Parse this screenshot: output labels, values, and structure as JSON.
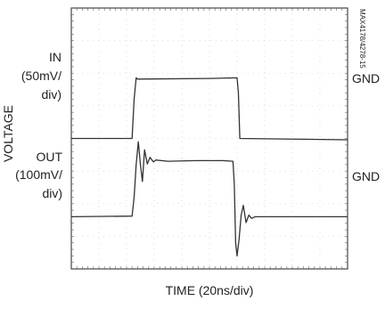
{
  "chart_data": {
    "type": "line",
    "title": "",
    "xlabel": "TIME (20ns/div)",
    "ylabel": "VOLTAGE",
    "grid": true,
    "divisions": {
      "x": 10,
      "y": 8
    },
    "xlim": [
      0,
      200
    ],
    "ylim": [
      0,
      8
    ],
    "x_unit": "ns",
    "series": [
      {
        "name": "IN",
        "label_lines": [
          "IN",
          "(50mV/",
          "div)"
        ],
        "ground_label": "GND",
        "ground_level": 4.0,
        "points": [
          [
            0,
            4.0
          ],
          [
            44,
            4.0
          ],
          [
            45.5,
            5.2
          ],
          [
            47,
            5.86
          ],
          [
            48,
            5.82
          ],
          [
            100,
            5.84
          ],
          [
            120,
            5.86
          ],
          [
            121,
            5.4
          ],
          [
            122,
            4.0
          ],
          [
            200,
            3.96
          ]
        ]
      },
      {
        "name": "OUT",
        "label_lines": [
          "OUT",
          "(100mV/",
          "div)"
        ],
        "ground_label": "GND",
        "ground_level": 1.6,
        "points": [
          [
            0,
            1.6
          ],
          [
            44,
            1.62
          ],
          [
            45.5,
            2.2
          ],
          [
            47,
            3.2
          ],
          [
            48.5,
            3.9
          ],
          [
            50,
            3.22
          ],
          [
            51.5,
            2.68
          ],
          [
            53,
            3.65
          ],
          [
            55,
            3.22
          ],
          [
            57,
            3.42
          ],
          [
            59.5,
            3.28
          ],
          [
            61,
            3.34
          ],
          [
            70,
            3.3
          ],
          [
            90,
            3.32
          ],
          [
            110,
            3.32
          ],
          [
            117,
            3.3
          ],
          [
            118,
            2.6
          ],
          [
            119,
            0.8
          ],
          [
            120,
            0.4
          ],
          [
            121.5,
            0.92
          ],
          [
            123,
            1.65
          ],
          [
            124.5,
            1.95
          ],
          [
            126.5,
            1.42
          ],
          [
            128.5,
            1.65
          ],
          [
            130.5,
            1.55
          ],
          [
            133,
            1.6
          ],
          [
            145,
            1.6
          ],
          [
            200,
            1.6
          ]
        ]
      }
    ],
    "annotations": [
      "MAX4178/4278-15"
    ]
  }
}
